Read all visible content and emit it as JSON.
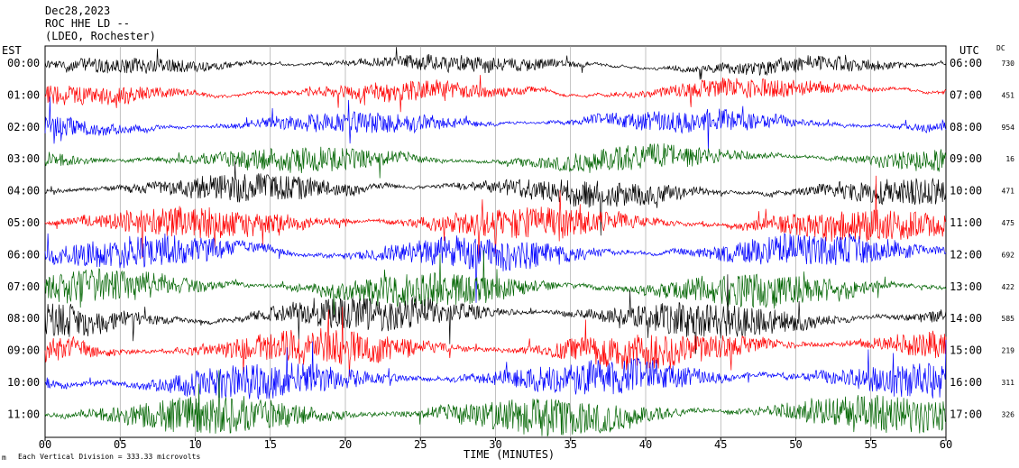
{
  "header": {
    "date": "Dec28,2023",
    "station": "ROC HHE LD --",
    "network": "(LDEO, Rochester)"
  },
  "labels": {
    "left_tz": "EST",
    "right_tz": "UTC",
    "dc_title": "DC",
    "xlabel": "TIME (MINUTES)",
    "scale_note": "Each Vertical Division =  333.33 microvolts",
    "corner_mark": "m"
  },
  "chart_data": {
    "type": "line",
    "title": "ROC HHE LD --",
    "xlabel": "TIME (MINUTES)",
    "xlim": [
      0,
      60
    ],
    "x_ticks": [
      "00",
      "05",
      "10",
      "15",
      "20",
      "25",
      "30",
      "35",
      "40",
      "45",
      "50",
      "55",
      "60"
    ],
    "colors": [
      "#000000",
      "#ff0000",
      "#0000ff",
      "#006400"
    ],
    "traces": [
      {
        "est": "00:00",
        "utc": "06:00",
        "dc": "730",
        "color": "#000000",
        "amplitude": 9
      },
      {
        "est": "01:00",
        "utc": "07:00",
        "dc": "451",
        "color": "#ff0000",
        "amplitude": 11
      },
      {
        "est": "02:00",
        "utc": "08:00",
        "dc": "954",
        "color": "#0000ff",
        "amplitude": 12
      },
      {
        "est": "03:00",
        "utc": "09:00",
        "dc": "16",
        "color": "#006400",
        "amplitude": 14
      },
      {
        "est": "04:00",
        "utc": "10:00",
        "dc": "471",
        "color": "#000000",
        "amplitude": 15
      },
      {
        "est": "05:00",
        "utc": "11:00",
        "dc": "475",
        "color": "#ff0000",
        "amplitude": 18
      },
      {
        "est": "06:00",
        "utc": "12:00",
        "dc": "692",
        "color": "#0000ff",
        "amplitude": 18
      },
      {
        "est": "07:00",
        "utc": "13:00",
        "dc": "422",
        "color": "#006400",
        "amplitude": 19
      },
      {
        "est": "08:00",
        "utc": "14:00",
        "dc": "585",
        "color": "#000000",
        "amplitude": 19
      },
      {
        "est": "09:00",
        "utc": "15:00",
        "dc": "219",
        "color": "#ff0000",
        "amplitude": 20
      },
      {
        "est": "10:00",
        "utc": "16:00",
        "dc": "311",
        "color": "#0000ff",
        "amplitude": 20
      },
      {
        "est": "11:00",
        "utc": "17:00",
        "dc": "326",
        "color": "#006400",
        "amplitude": 21
      }
    ]
  }
}
